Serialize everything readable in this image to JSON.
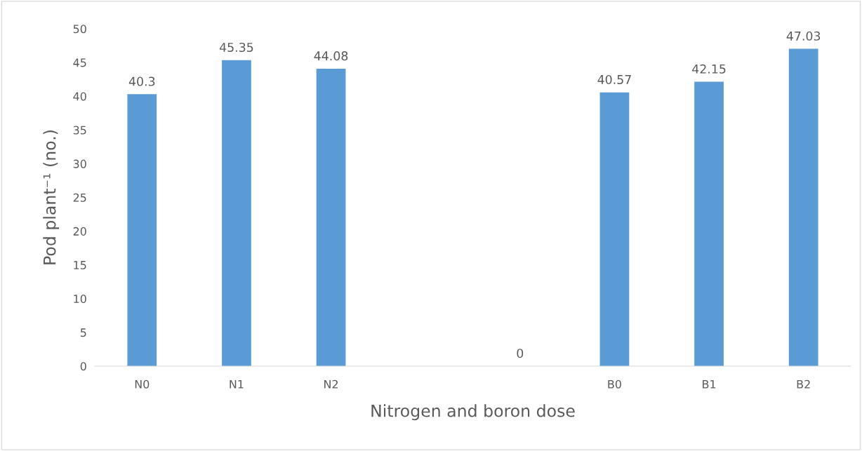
{
  "chart_data": {
    "type": "bar",
    "xlabel": "Nitrogen and boron dose",
    "ylabel": "Pod plant⁻¹ (no.)",
    "categories": [
      "N0",
      "N1",
      "N2",
      null,
      null,
      "B0",
      "B1",
      "B2"
    ],
    "values": [
      40.3,
      45.35,
      44.08,
      null,
      0,
      40.57,
      42.15,
      47.03
    ],
    "color": "#5b9bd5",
    "ylim": [
      0,
      50
    ],
    "yticks": [
      0,
      5,
      10,
      15,
      20,
      25,
      30,
      35,
      40,
      45,
      50
    ],
    "data_labels": true,
    "grid": false,
    "legend": false
  }
}
